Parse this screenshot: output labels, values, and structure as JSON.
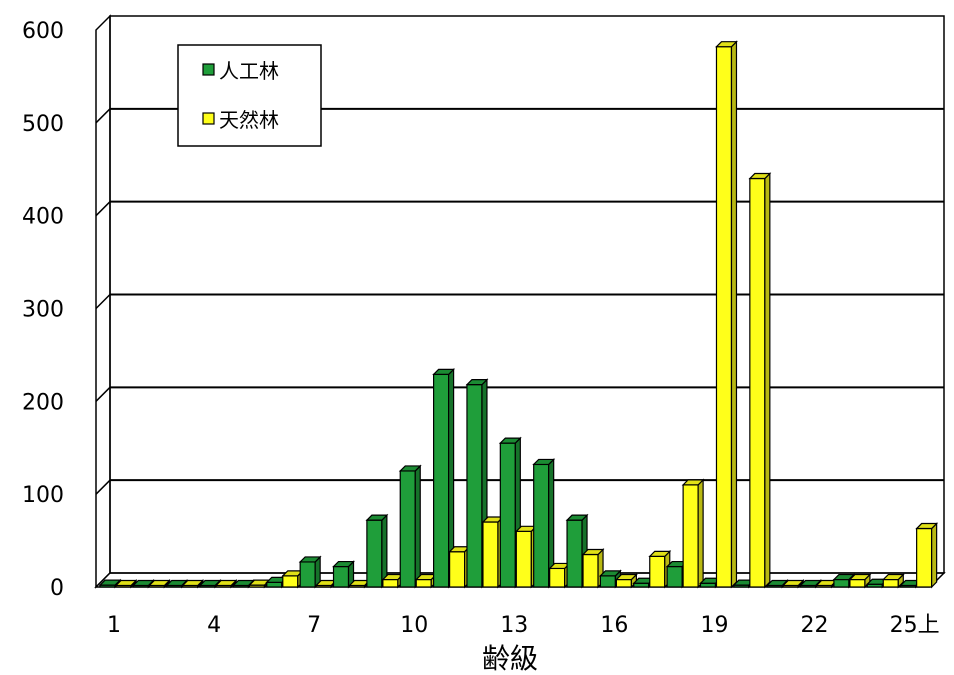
{
  "chart_data": {
    "type": "bar",
    "title": "",
    "xlabel": "齢級",
    "ylabel": "",
    "ylim": [
      0,
      600
    ],
    "yticks": [
      0,
      100,
      200,
      300,
      400,
      500,
      600
    ],
    "categories": [
      "1",
      "2",
      "3",
      "4",
      "5",
      "6",
      "7",
      "8",
      "9",
      "10",
      "11",
      "12",
      "13",
      "14",
      "15",
      "16",
      "17",
      "18",
      "19",
      "20",
      "21",
      "22",
      "23",
      "24",
      "25上"
    ],
    "x_tick_labels": [
      "1",
      "4",
      "7",
      "10",
      "13",
      "16",
      "19",
      "22",
      "25上"
    ],
    "grid": true,
    "legend_position": "top-left",
    "series": [
      {
        "name": "人工林",
        "color": "#1f9e3a",
        "values": [
          2,
          1,
          1,
          1,
          1,
          5,
          27,
          22,
          72,
          125,
          229,
          218,
          155,
          132,
          72,
          12,
          4,
          22,
          4,
          2,
          0,
          0,
          8,
          3,
          1
        ]
      },
      {
        "name": "天然林",
        "color": "#ffff1a",
        "values": [
          1,
          1,
          1,
          1,
          2,
          12,
          1,
          1,
          8,
          8,
          38,
          70,
          60,
          20,
          35,
          8,
          33,
          110,
          582,
          440,
          0,
          0,
          8,
          8,
          63
        ]
      }
    ]
  }
}
